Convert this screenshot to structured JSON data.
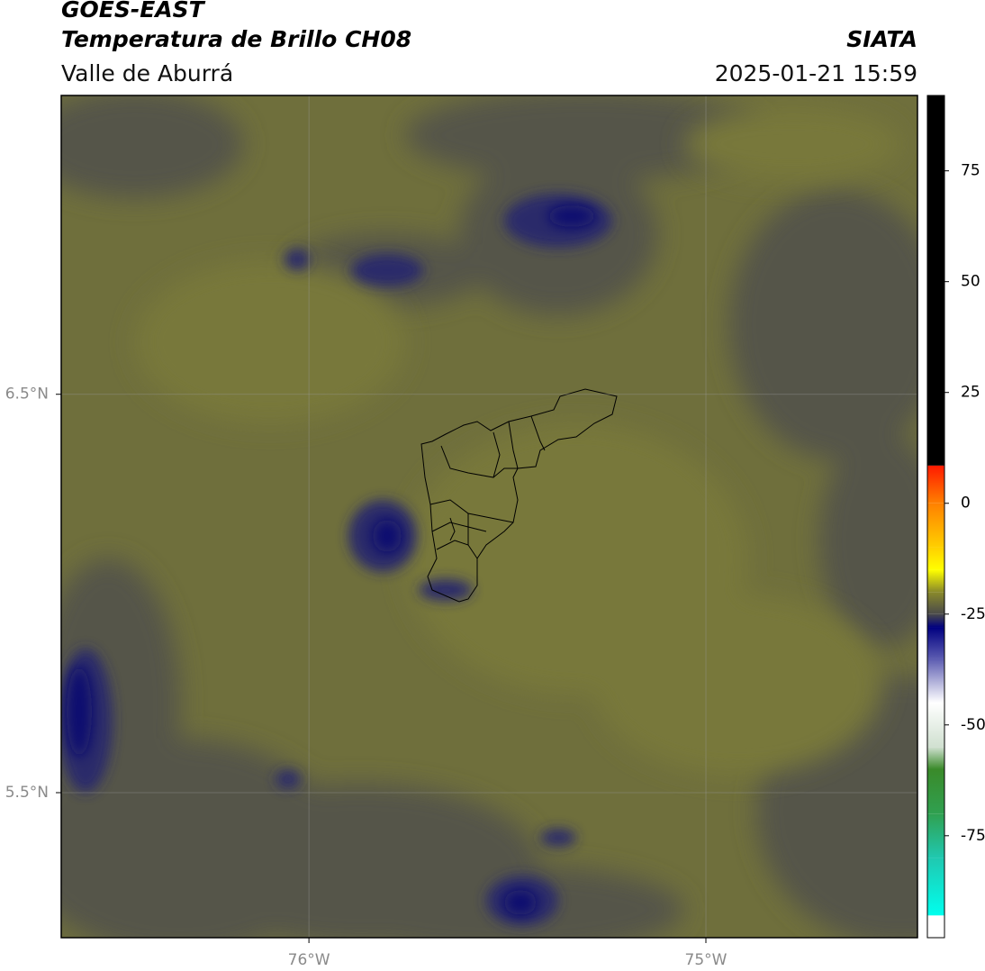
{
  "header": {
    "title": "GOES-EAST",
    "subtitle": "Temperatura de Brillo CH08",
    "source": "SIATA",
    "region": "Valle de Aburrá",
    "timestamp": "2025-01-21 15:59"
  },
  "map": {
    "lonlim": [
      -76.624,
      -74.467
    ],
    "latlim": [
      5.136,
      7.25
    ],
    "lonticks": [
      {
        "value": -76,
        "label": "76°W"
      },
      {
        "value": -75,
        "label": "75°W"
      }
    ],
    "latticks": [
      {
        "value": 6.5,
        "label": "6.5°N"
      },
      {
        "value": 5.5,
        "label": "5.5°N"
      }
    ],
    "grid": true
  },
  "colorbar": {
    "lim": [
      -98,
      92
    ],
    "ticks": [
      75,
      50,
      25,
      0,
      -25,
      -50,
      -75
    ],
    "stops": [
      {
        "value": 92,
        "color": "#000000"
      },
      {
        "value": 8.5,
        "color": "#000000"
      },
      {
        "value": 8.5,
        "color": "#ff1a00"
      },
      {
        "value": 0,
        "color": "#ff8000"
      },
      {
        "value": -10,
        "color": "#ffd000"
      },
      {
        "value": -15,
        "color": "#ffff00"
      },
      {
        "value": -20,
        "color": "#8a8a2a"
      },
      {
        "value": -25,
        "color": "#4a4a4a"
      },
      {
        "value": -28,
        "color": "#000080"
      },
      {
        "value": -35,
        "color": "#5a5ab0"
      },
      {
        "value": -45,
        "color": "#ffffff"
      },
      {
        "value": -55,
        "color": "#d0e0d0"
      },
      {
        "value": -60,
        "color": "#3a8a2a"
      },
      {
        "value": -70,
        "color": "#30a050"
      },
      {
        "value": -80,
        "color": "#20c8b0"
      },
      {
        "value": -93,
        "color": "#00ffee"
      },
      {
        "value": -93,
        "color": "#ffffff"
      },
      {
        "value": -98,
        "color": "#ffffff"
      }
    ]
  }
}
